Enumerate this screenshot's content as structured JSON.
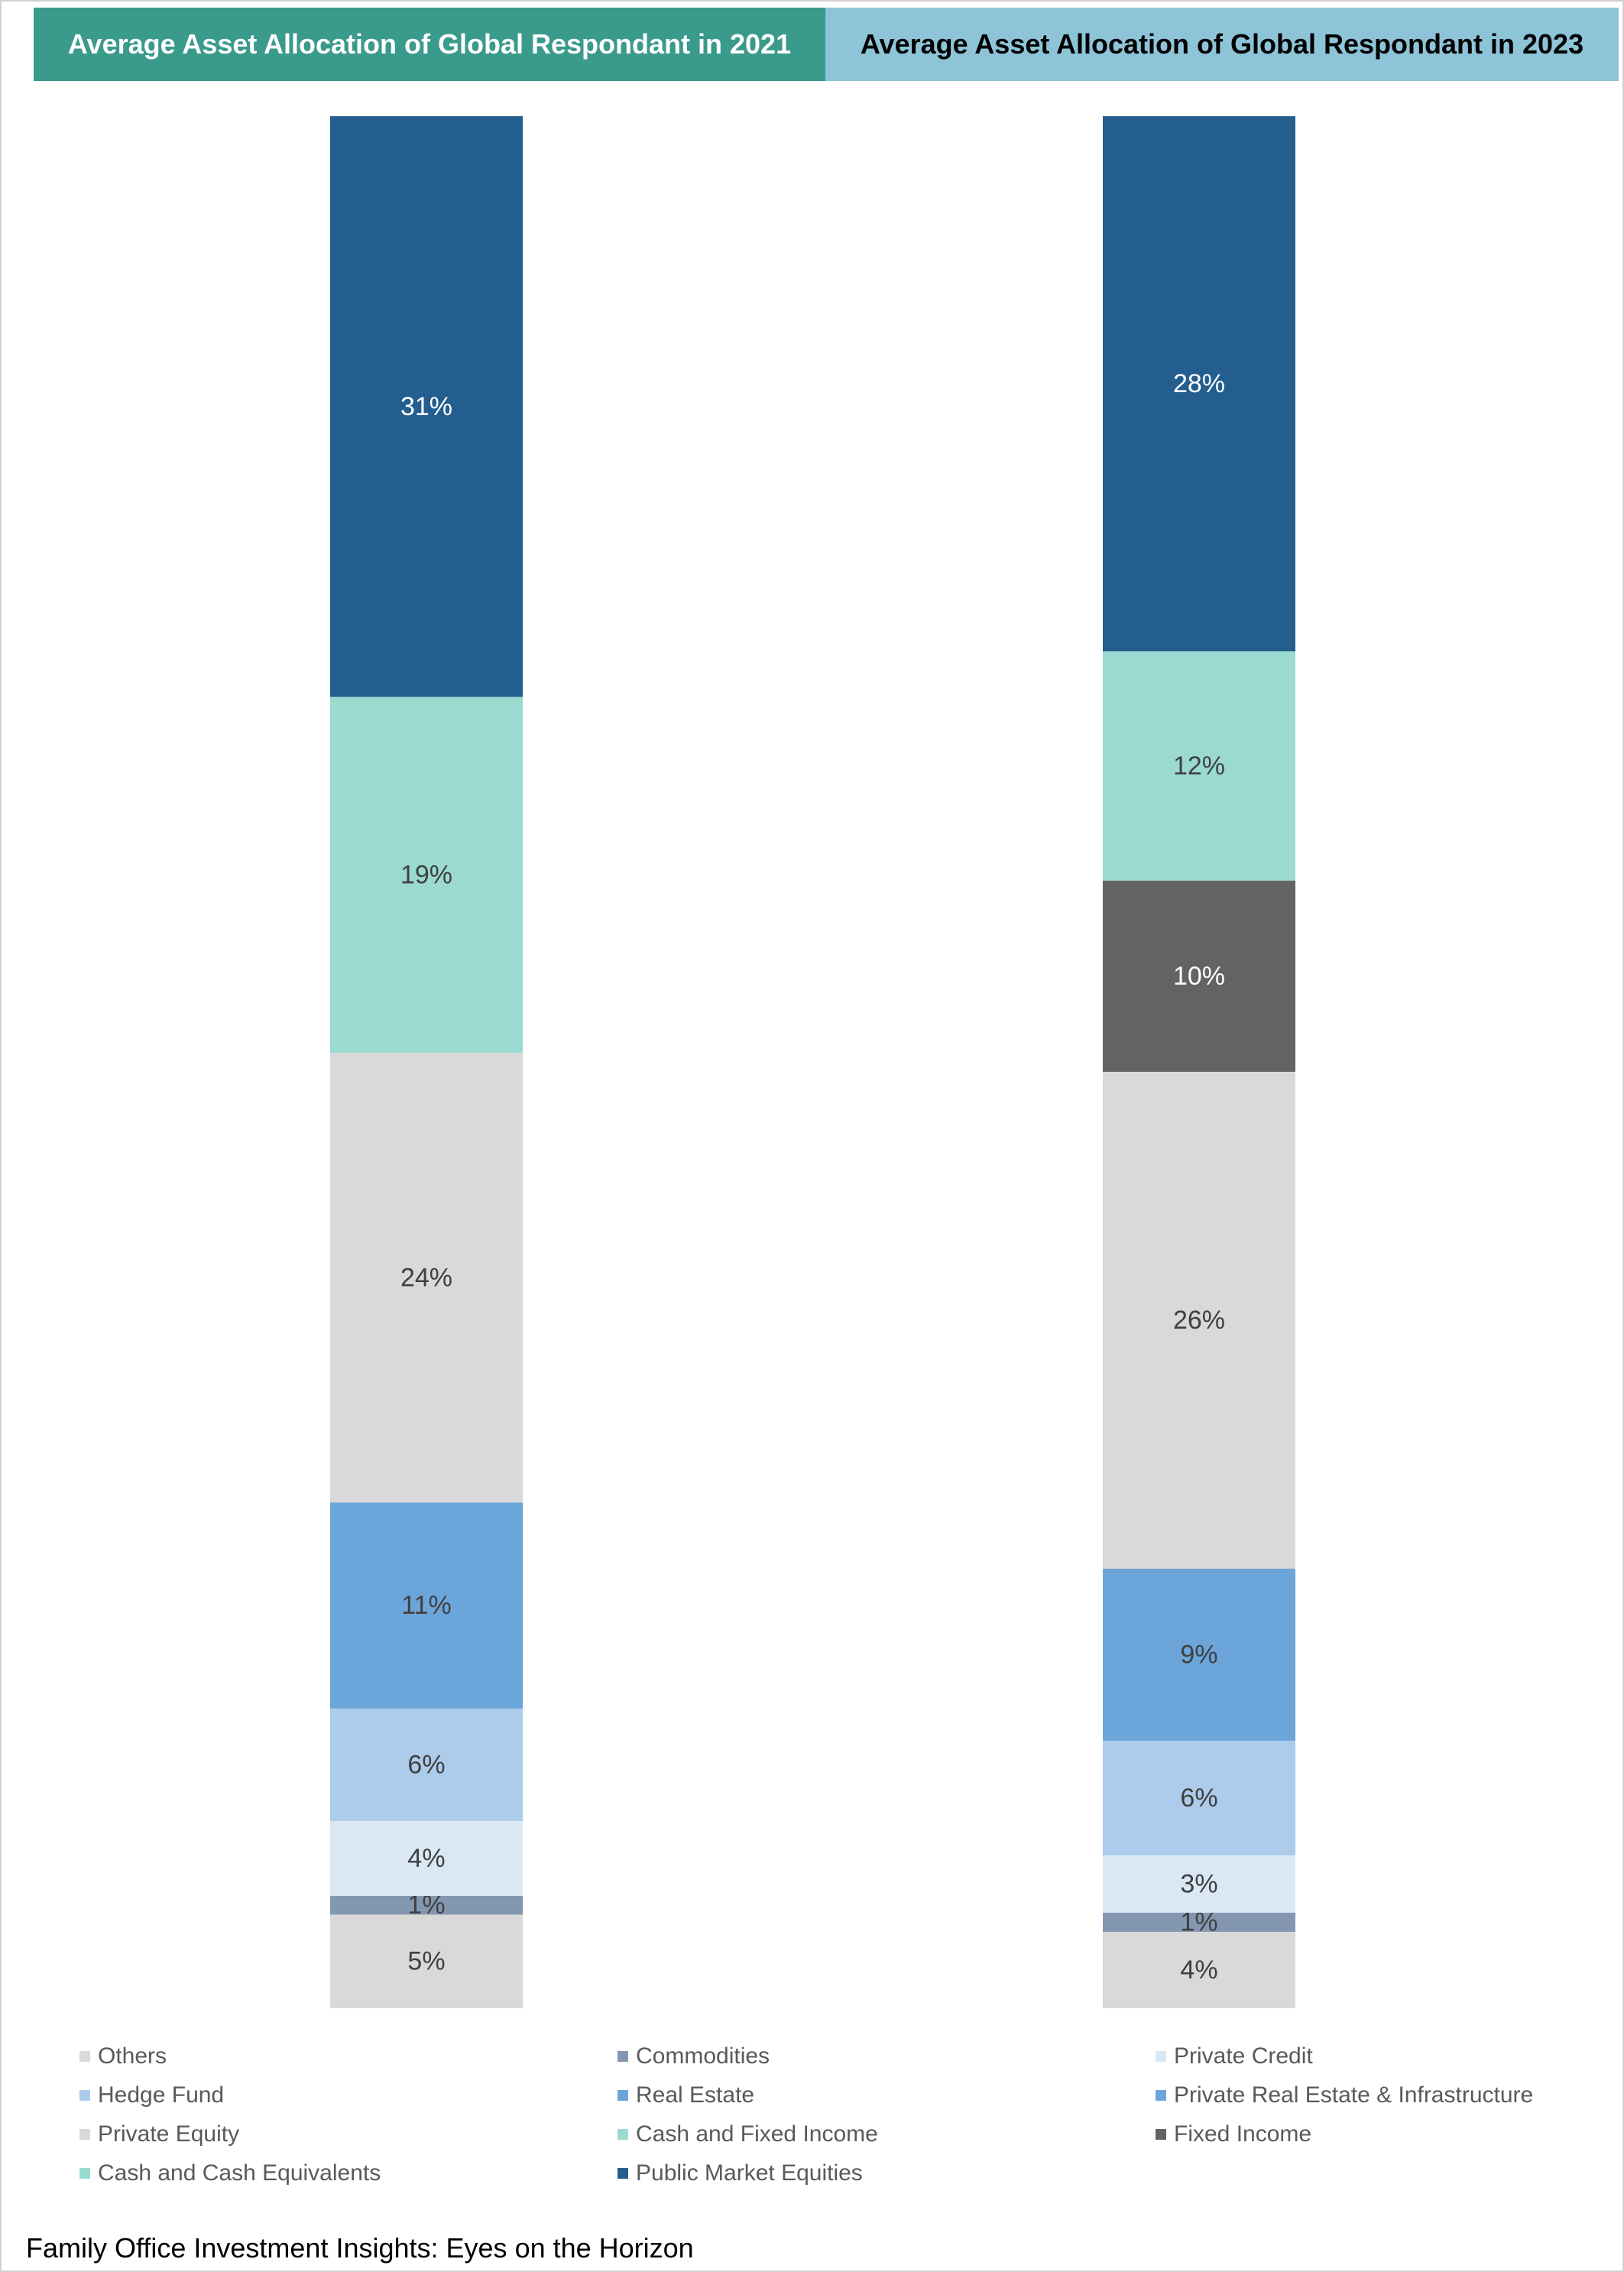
{
  "header": {
    "tab_2021": "Average Asset Allocation of Global Respondant in 2021",
    "tab_2023": "Average Asset Allocation of Global Respondant in 2023"
  },
  "chart_data": {
    "type": "bar",
    "stacked": true,
    "orientation": "vertical",
    "grid": false,
    "legend_position": "bottom",
    "categories": [
      "2021",
      "2023"
    ],
    "series_colors": {
      "Others": "#d9d9d9",
      "Commodities": "#8497b0",
      "Private Credit": "#dae8f6",
      "Hedge Fund": "#adcbea",
      "Real Estate": "#6ca5da",
      "Private Real Estate & Infrastructure": "#6ca5da",
      "Private Equity": "#d9d9d9",
      "Cash and Fixed Income": "#9bdad1",
      "Fixed Income": "#636363",
      "Cash and Cash Equivalents": "#9bdad1",
      "Public Market Equities": "#235e8f"
    },
    "bars": [
      {
        "category": "2021",
        "segments": [
          {
            "name": "Others",
            "value": 5,
            "label": "5%"
          },
          {
            "name": "Commodities",
            "value": 1,
            "label": "1%"
          },
          {
            "name": "Private Credit",
            "value": 4,
            "label": "4%"
          },
          {
            "name": "Hedge Fund",
            "value": 6,
            "label": "6%"
          },
          {
            "name": "Real Estate",
            "value": 11,
            "label": "11%"
          },
          {
            "name": "Private Equity",
            "value": 24,
            "label": "24%"
          },
          {
            "name": "Cash and Fixed Income",
            "value": 19,
            "label": "19%"
          },
          {
            "name": "Public Market Equities",
            "value": 31,
            "label": "31%"
          }
        ]
      },
      {
        "category": "2023",
        "segments": [
          {
            "name": "Others",
            "value": 4,
            "label": "4%"
          },
          {
            "name": "Commodities",
            "value": 1,
            "label": "1%"
          },
          {
            "name": "Private Credit",
            "value": 3,
            "label": "3%"
          },
          {
            "name": "Hedge Fund",
            "value": 6,
            "label": "6%"
          },
          {
            "name": "Private Real Estate & Infrastructure",
            "value": 9,
            "label": "9%"
          },
          {
            "name": "Private Equity",
            "value": 26,
            "label": "26%"
          },
          {
            "name": "Fixed Income",
            "value": 10,
            "label": "10%"
          },
          {
            "name": "Cash and Cash Equivalents",
            "value": 12,
            "label": "12%"
          },
          {
            "name": "Public Market Equities",
            "value": 28,
            "label": "28%"
          }
        ]
      }
    ]
  },
  "legend": {
    "items": [
      {
        "label": "Others",
        "color": "#d9d9d9"
      },
      {
        "label": "Commodities",
        "color": "#8497b0"
      },
      {
        "label": "Private Credit",
        "color": "#dae8f6"
      },
      {
        "label": "Hedge Fund",
        "color": "#adcbea"
      },
      {
        "label": "Real Estate",
        "color": "#6ca5da"
      },
      {
        "label": "Private Real Estate & Infrastructure",
        "color": "#6ca5da"
      },
      {
        "label": "Private Equity",
        "color": "#d9d9d9"
      },
      {
        "label": "Cash and Fixed Income",
        "color": "#9bdad1"
      },
      {
        "label": "Fixed Income",
        "color": "#636363"
      },
      {
        "label": "Cash and Cash Equivalents",
        "color": "#9bdad1"
      },
      {
        "label": "Public Market Equities",
        "color": "#235e8f"
      }
    ]
  },
  "footer": {
    "text": "Family Office Investment Insights: Eyes on the Horizon"
  }
}
